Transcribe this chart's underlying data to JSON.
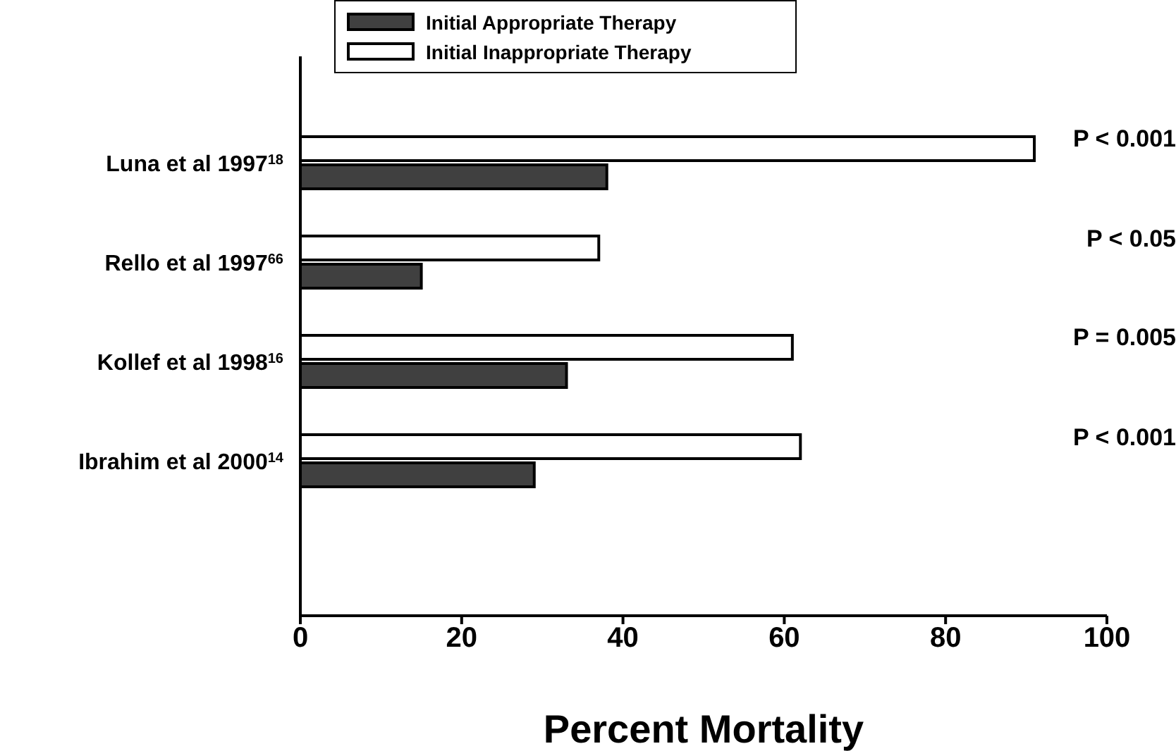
{
  "chart_data": {
    "type": "bar",
    "orientation": "horizontal",
    "xlabel": "Percent Mortality",
    "categories": [
      "Luna et al 1997$^{18}$",
      "Rello et al 1997$^{66}$",
      "Kollef et al 1998$^{16}$",
      "Ibrahim et al 2000$^{14}$"
    ],
    "series": [
      {
        "name": "Initial Appropriate Therapy",
        "color": "#404040",
        "values": [
          38,
          15,
          33,
          29
        ]
      },
      {
        "name": "Initial Inappropriate Therapy",
        "color": "#ffffff",
        "values": [
          91,
          37,
          61,
          62
        ]
      }
    ],
    "xlim": [
      0,
      100
    ],
    "xticks": [
      0,
      20,
      40,
      60,
      80,
      100
    ],
    "grid": false,
    "legend": "top",
    "annotations": [
      "P < 0.001",
      "P < 0.05",
      "P = 0.005",
      "P < 0.001"
    ]
  }
}
